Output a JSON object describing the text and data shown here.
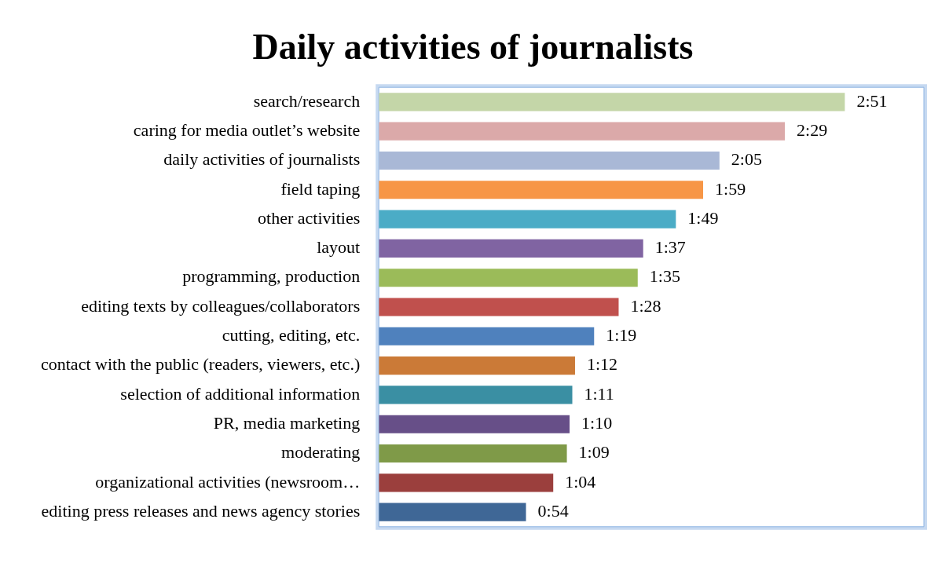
{
  "chart_data": {
    "type": "bar",
    "orientation": "horizontal",
    "title": "Daily activities of journalists",
    "categories": [
      "search/research",
      "caring for media outlet’s website",
      "daily activities of journalists",
      "field taping",
      "other activities",
      "layout",
      "programming, production",
      "editing texts by colleagues/collaborators",
      "cutting, editing, etc.",
      "contact with the public (readers, viewers, etc.)",
      "selection of additional information",
      "PR, media marketing",
      "moderating",
      "organizational activities (newsroom…",
      "editing press releases and news agency stories"
    ],
    "values": [
      171,
      149,
      125,
      119,
      109,
      97,
      95,
      88,
      79,
      72,
      71,
      70,
      69,
      64,
      54
    ],
    "value_labels": [
      "2:51",
      "2:29",
      "2:05",
      "1:59",
      "1:49",
      "1:37",
      "1:35",
      "1:28",
      "1:19",
      "1:12",
      "1:11",
      "1:10",
      "1:09",
      "1:04",
      "0:54"
    ],
    "colors": [
      "#c4d6a8",
      "#dba9a9",
      "#a9b8d6",
      "#f79646",
      "#4bacc6",
      "#8064a2",
      "#9bbb59",
      "#c0504d",
      "#4f81bd",
      "#cb7a37",
      "#3a8fa3",
      "#674f88",
      "#7f9a48",
      "#9b3f3d",
      "#3f6796"
    ],
    "grid": false,
    "legend": false
  }
}
